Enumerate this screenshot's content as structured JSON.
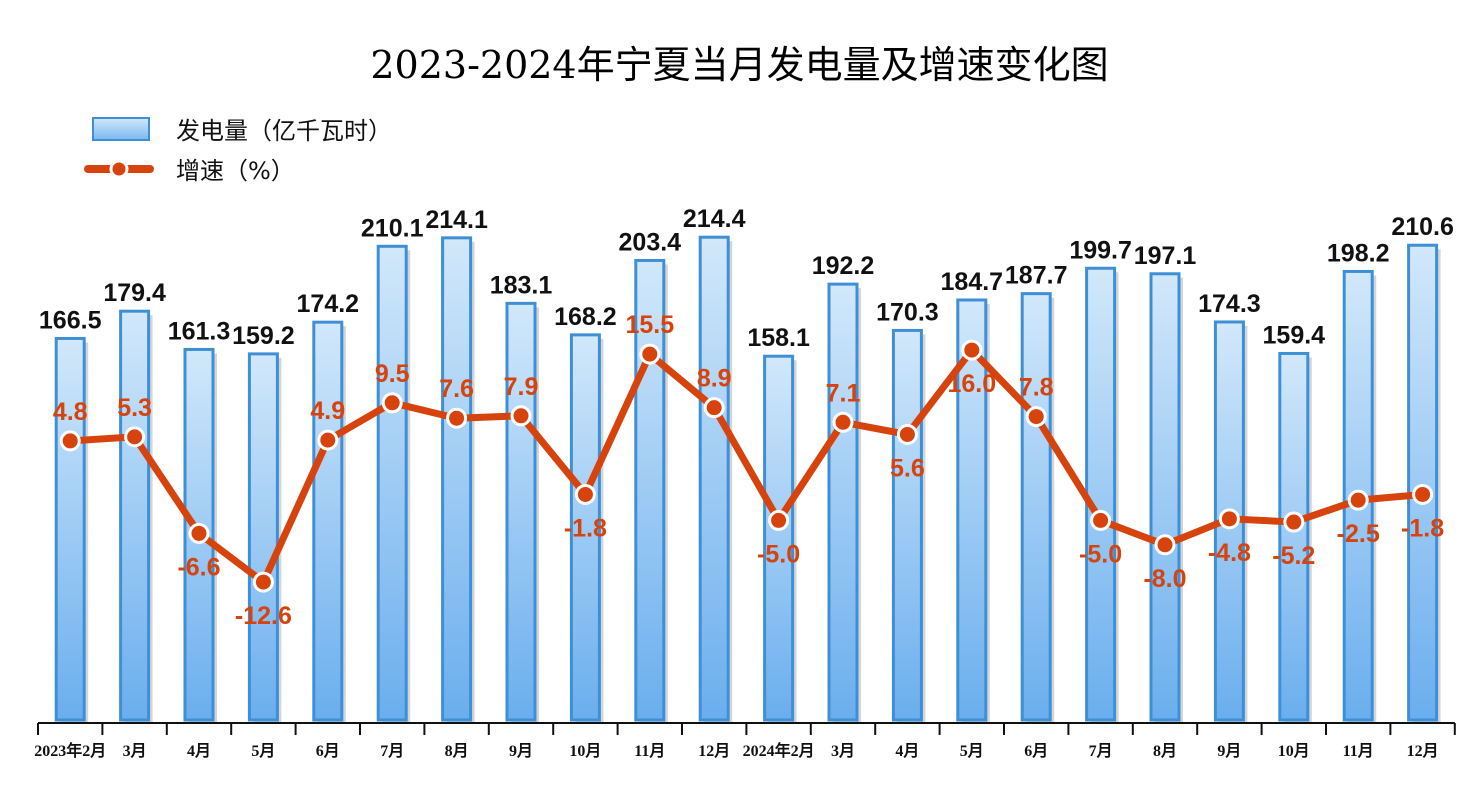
{
  "chart_data": {
    "type": "bar+line",
    "title": "2023-2024年宁夏当月发电量及增速变化图",
    "categories": [
      "2023年2月",
      "3月",
      "4月",
      "5月",
      "6月",
      "7月",
      "8月",
      "9月",
      "10月",
      "11月",
      "12月",
      "2024年2月",
      "3月",
      "4月",
      "5月",
      "6月",
      "7月",
      "8月",
      "9月",
      "10月",
      "11月",
      "12月"
    ],
    "series": [
      {
        "name": "发电量（亿千瓦时）",
        "type": "bar",
        "color": "#6fb0ee",
        "border": "#3f8fd6",
        "values": [
          166.5,
          179.4,
          161.3,
          159.2,
          174.2,
          210.1,
          214.1,
          183.1,
          168.2,
          203.4,
          214.4,
          158.1,
          192.2,
          170.3,
          184.7,
          187.7,
          199.7,
          197.1,
          174.3,
          159.4,
          198.2,
          210.6
        ],
        "ylim": [
          -14,
          232
        ]
      },
      {
        "name": "增速（%）",
        "type": "line",
        "color": "#d7430d",
        "values": [
          4.8,
          5.3,
          -6.6,
          -12.6,
          4.9,
          9.5,
          7.6,
          7.9,
          -1.8,
          15.5,
          8.9,
          -5.0,
          7.1,
          5.6,
          16.0,
          7.8,
          -5.0,
          -8.0,
          -4.8,
          -5.2,
          -2.5,
          -1.8
        ],
        "label_positions": [
          "above",
          "above",
          "below",
          "below",
          "above",
          "above",
          "above",
          "above",
          "below",
          "above",
          "above",
          "below",
          "above",
          "below",
          "below",
          "above",
          "below",
          "below",
          "below",
          "below",
          "below",
          "below"
        ],
        "ylim": [
          -29.6,
          34.5
        ]
      }
    ],
    "axes_visible": {
      "y": false,
      "x": true
    },
    "grid": false,
    "legend_placement": "top-left"
  }
}
